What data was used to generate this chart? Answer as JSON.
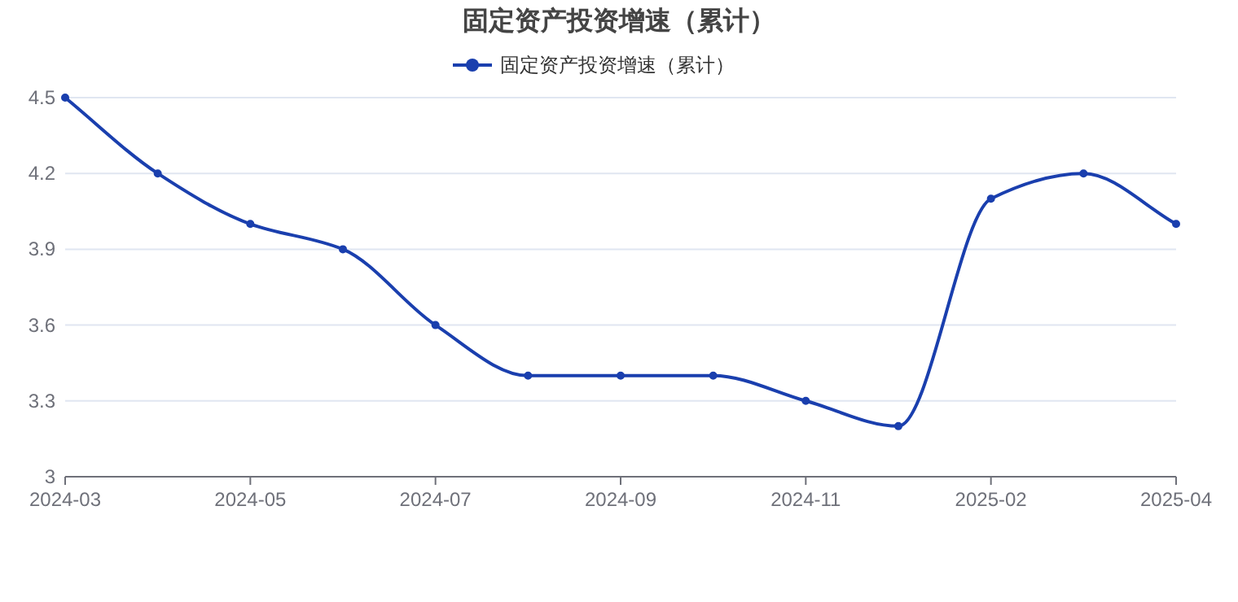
{
  "chart_data": {
    "type": "line",
    "title": "固定资产投资增速（累计）",
    "categories": [
      "2024-03",
      null,
      "2024-05",
      null,
      "2024-07",
      null,
      "2024-09",
      null,
      "2024-11",
      null,
      "2025-02",
      null,
      "2025-04"
    ],
    "series": [
      {
        "name": "固定资产投资增速（累计）",
        "color": "#1a3fae",
        "values": [
          4.5,
          4.2,
          4.0,
          3.9,
          3.6,
          3.4,
          3.4,
          3.4,
          3.3,
          3.2,
          4.1,
          4.2,
          4.0
        ]
      }
    ],
    "ylim": [
      3,
      4.5
    ],
    "yticks": [
      3,
      3.3,
      3.6,
      3.9,
      4.2,
      4.5
    ],
    "grid": "y",
    "legend": "top",
    "marker": "circle"
  }
}
